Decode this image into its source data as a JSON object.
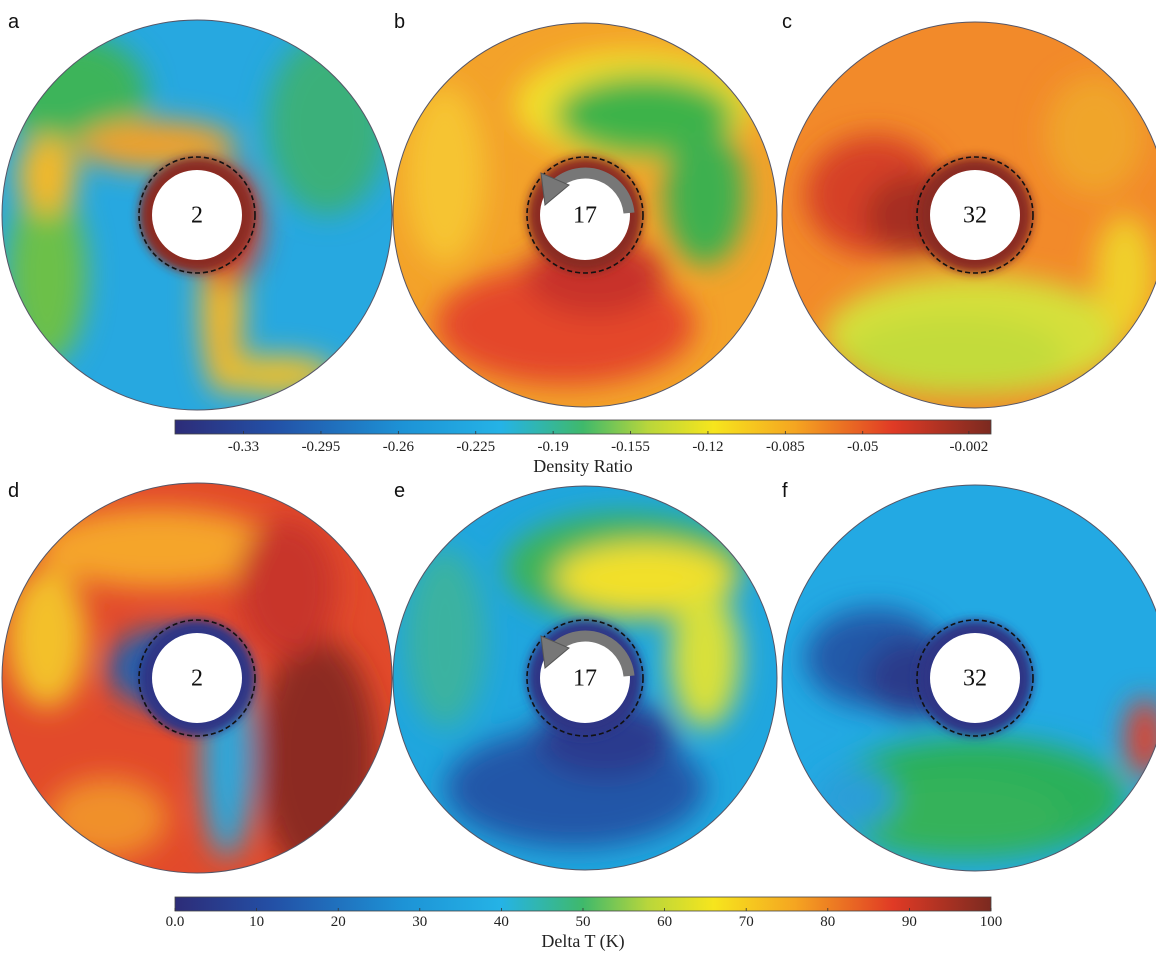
{
  "panels": [
    {
      "label": "a",
      "number": "2"
    },
    {
      "label": "b",
      "number": "17"
    },
    {
      "label": "c",
      "number": "32"
    },
    {
      "label": "d",
      "number": "2"
    },
    {
      "label": "e",
      "number": "17"
    },
    {
      "label": "f",
      "number": "32"
    }
  ],
  "colorbars": [
    {
      "title": "Density Ratio",
      "range": [
        -0.361,
        0.008
      ],
      "ticks": [
        -0.33,
        -0.295,
        -0.26,
        -0.225,
        -0.19,
        -0.155,
        -0.12,
        -0.085,
        -0.05,
        -0.002
      ]
    },
    {
      "title": "Delta T (K)",
      "range": [
        0,
        100
      ],
      "ticks": [
        {
          "value": 0,
          "label": "0.0"
        },
        10,
        20,
        30,
        40,
        50,
        60,
        70,
        80,
        90,
        100
      ]
    }
  ]
}
